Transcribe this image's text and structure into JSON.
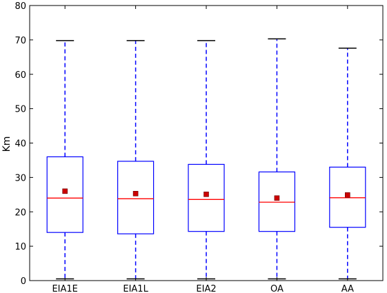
{
  "chart_data": {
    "type": "box",
    "title": "",
    "xlabel": "",
    "ylabel": "Km",
    "ylim": [
      0,
      80
    ],
    "yticks": [
      0,
      10,
      20,
      30,
      40,
      50,
      60,
      70,
      80
    ],
    "categories": [
      "EIA1E",
      "EIA1L",
      "EIA2",
      "OA",
      "AA"
    ],
    "boxes": [
      {
        "category": "EIA1E",
        "whisker_low": 0.5,
        "q1": 14.0,
        "median": 24.0,
        "q3": 36.0,
        "whisker_high": 69.8,
        "mean": 26.0
      },
      {
        "category": "EIA1L",
        "whisker_low": 0.5,
        "q1": 13.6,
        "median": 23.8,
        "q3": 34.7,
        "whisker_high": 69.8,
        "mean": 25.3
      },
      {
        "category": "EIA2",
        "whisker_low": 0.5,
        "q1": 14.3,
        "median": 23.6,
        "q3": 33.8,
        "whisker_high": 69.8,
        "mean": 25.1
      },
      {
        "category": "OA",
        "whisker_low": 0.5,
        "q1": 14.3,
        "median": 22.8,
        "q3": 31.6,
        "whisker_high": 70.3,
        "mean": 24.0
      },
      {
        "category": "AA",
        "whisker_low": 0.5,
        "q1": 15.5,
        "median": 24.1,
        "q3": 33.0,
        "whisker_high": 67.6,
        "mean": 24.9
      }
    ],
    "grid": false,
    "colors": {
      "box": "#0000ff",
      "whisker": "#0000ff",
      "cap": "#000000",
      "median": "#ff0000",
      "mean_marker": "#cc0000",
      "axes": "#000000"
    }
  }
}
